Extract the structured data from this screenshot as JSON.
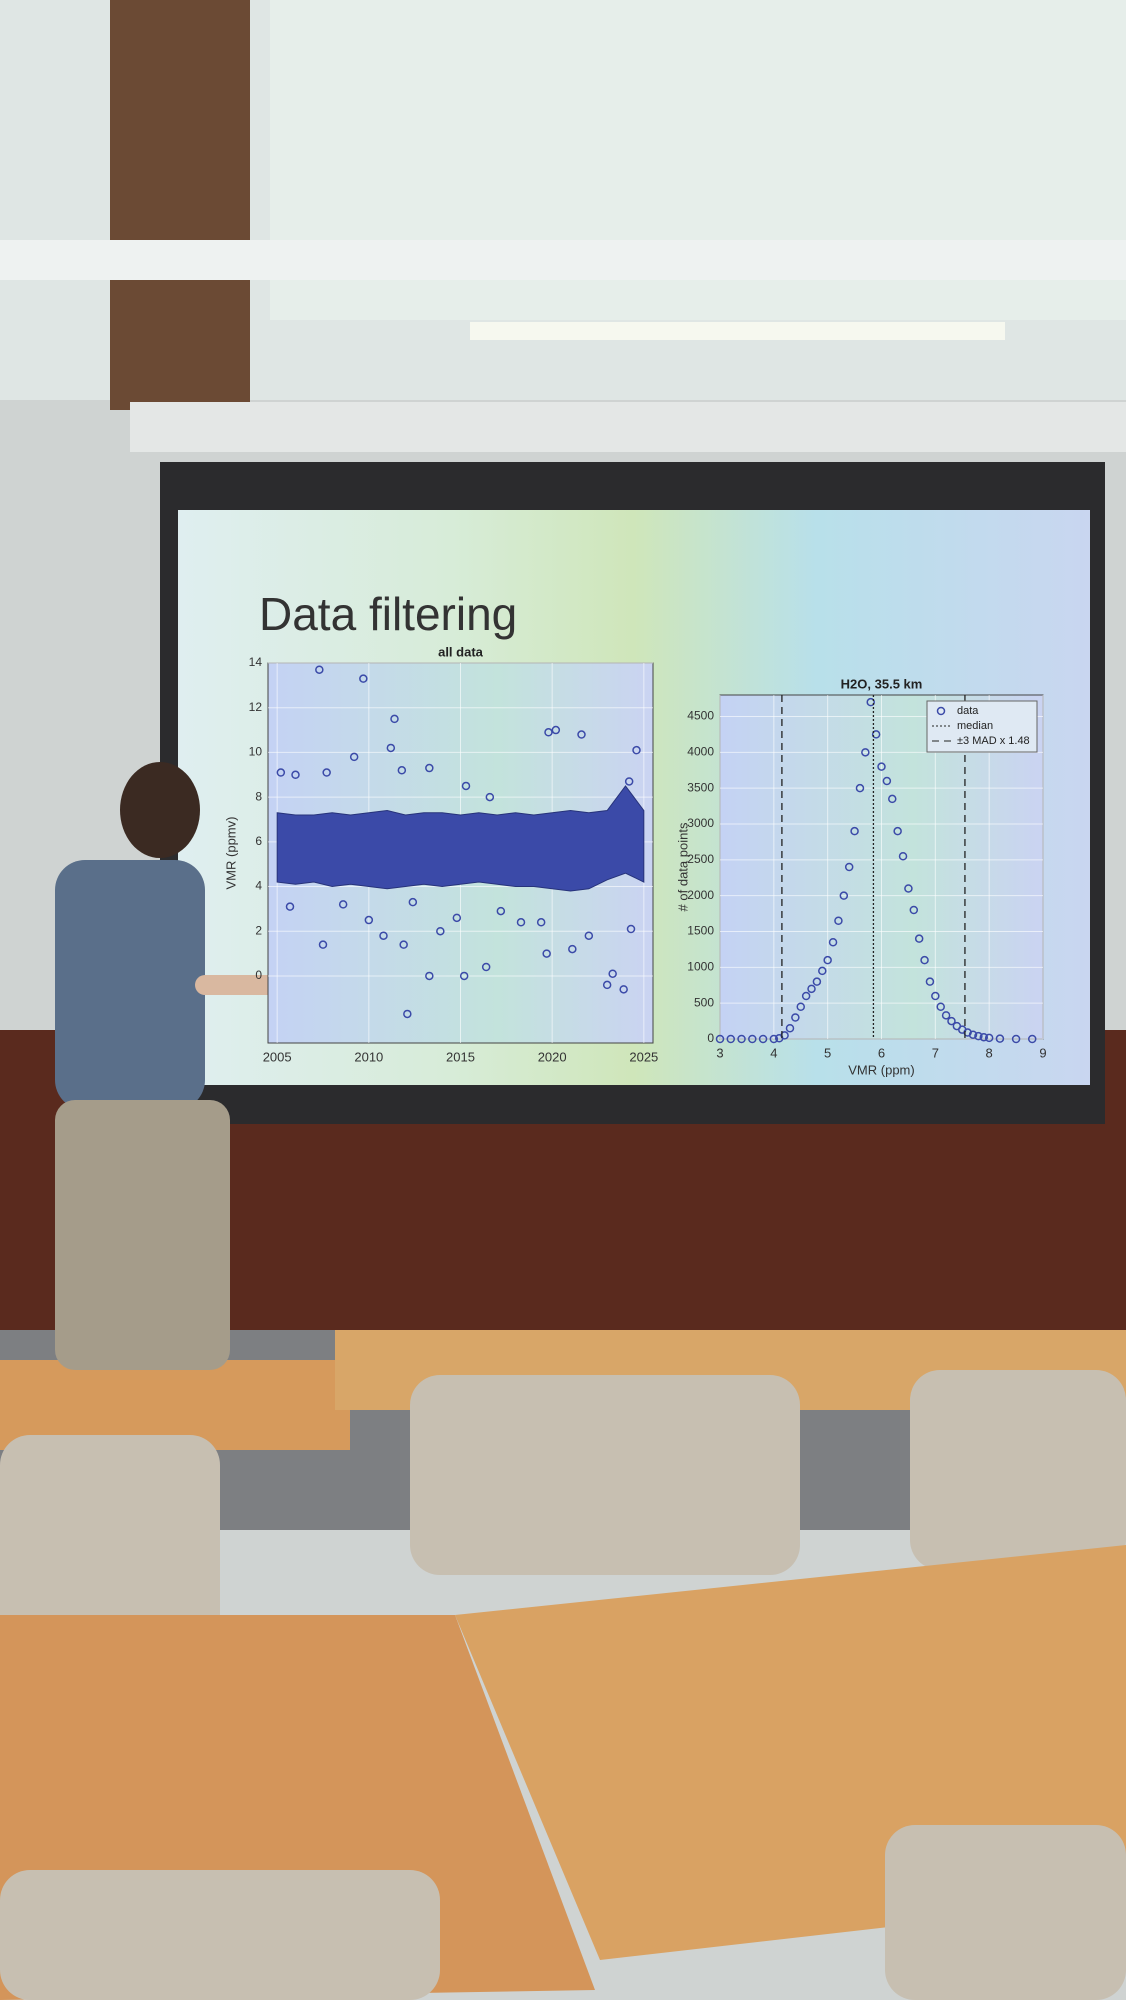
{
  "slide": {
    "title": "Data filtering"
  },
  "chart_data": [
    {
      "type": "scatter",
      "title": "all data",
      "ylabel": "VMR (ppmv)",
      "color": "#3b4aa8",
      "xlim": [
        2004.5,
        2025.5
      ],
      "xticks": [
        2005,
        2010,
        2015,
        2020,
        2025
      ],
      "ylim": [
        -3,
        14
      ],
      "yticks": [
        0,
        2,
        4,
        6,
        8,
        10,
        12,
        14
      ],
      "grid": true,
      "points": {
        "x": [
          2007.3,
          2009.7,
          2005.2,
          2006,
          2007.7,
          2009.2,
          2011.2,
          2011.4,
          2011.8,
          2013.3,
          2015.3,
          2016.6,
          2019.8,
          2020.2,
          2021.6,
          2024.6,
          2024.2,
          2011.9,
          2012.1,
          2013.3,
          2015.2,
          2016.4,
          2019.7,
          2023.0,
          2023.9,
          2023.3,
          2007.5,
          2010.0,
          2010.8,
          2013.9,
          2017.2,
          2018.3,
          2021.1,
          2022.0,
          2024.3,
          2005.7,
          2008.6,
          2012.4,
          2014.8,
          2019.4
        ],
        "y": [
          13.7,
          13.3,
          9.1,
          9.0,
          9.1,
          9.8,
          10.2,
          11.5,
          9.2,
          9.3,
          8.5,
          8.0,
          10.9,
          11.0,
          10.8,
          10.1,
          8.7,
          1.4,
          -1.7,
          0.0,
          0.0,
          0.4,
          1.0,
          -0.4,
          -0.6,
          0.1,
          1.4,
          2.5,
          1.8,
          2.0,
          2.9,
          2.4,
          1.2,
          1.8,
          2.1,
          3.1,
          3.2,
          3.3,
          2.6,
          2.4
        ]
      },
      "band": {
        "x": [
          2005,
          2006,
          2007,
          2008,
          2009,
          2010,
          2011,
          2012,
          2013,
          2014,
          2015,
          2016,
          2017,
          2018,
          2019,
          2020,
          2021,
          2022,
          2023,
          2024,
          2025
        ],
        "low": [
          4.2,
          4.1,
          4.2,
          4.0,
          4.1,
          4.0,
          3.9,
          4.0,
          4.1,
          4.0,
          4.1,
          4.2,
          4.1,
          4.0,
          4.0,
          3.9,
          3.8,
          3.9,
          4.3,
          4.6,
          4.2
        ],
        "high": [
          7.3,
          7.2,
          7.2,
          7.3,
          7.2,
          7.3,
          7.4,
          7.2,
          7.3,
          7.3,
          7.2,
          7.3,
          7.2,
          7.3,
          7.2,
          7.3,
          7.4,
          7.3,
          7.4,
          8.5,
          7.4
        ]
      }
    },
    {
      "type": "scatter",
      "title": "H2O, 35.5 km",
      "xlabel": "VMR (ppm)",
      "ylabel": "# of data points",
      "color": "#3b4aa8",
      "xlim": [
        3,
        9
      ],
      "xticks": [
        3,
        4,
        5,
        6,
        7,
        8,
        9
      ],
      "ylim": [
        0,
        4800
      ],
      "yticks": [
        0,
        500,
        1000,
        1500,
        2000,
        2500,
        3000,
        3500,
        4000,
        4500
      ],
      "grid": true,
      "legend": "upper right",
      "series": [
        {
          "name": "data",
          "x": [
            3.0,
            3.2,
            3.4,
            3.6,
            3.8,
            4.0,
            4.1,
            4.2,
            4.3,
            4.4,
            4.5,
            4.6,
            4.7,
            4.8,
            4.9,
            5.0,
            5.1,
            5.2,
            5.3,
            5.4,
            5.5,
            5.6,
            5.7,
            5.8,
            5.9,
            6.0,
            6.1,
            6.2,
            6.3,
            6.4,
            6.5,
            6.6,
            6.7,
            6.8,
            6.9,
            7.0,
            7.1,
            7.2,
            7.3,
            7.4,
            7.5,
            7.6,
            7.7,
            7.8,
            7.9,
            8.0,
            8.2,
            8.5,
            8.8
          ],
          "values": [
            0,
            0,
            0,
            0,
            0,
            0,
            10,
            50,
            150,
            300,
            450,
            600,
            700,
            800,
            950,
            1100,
            1350,
            1650,
            2000,
            2400,
            2900,
            3500,
            4000,
            4700,
            4250,
            3800,
            3600,
            3350,
            2900,
            2550,
            2100,
            1800,
            1400,
            1100,
            800,
            600,
            450,
            330,
            250,
            180,
            130,
            90,
            60,
            40,
            25,
            15,
            5,
            0,
            0
          ]
        }
      ],
      "vlines": [
        {
          "name": "median",
          "style": "dotted",
          "values": [
            5.85
          ]
        },
        {
          "name": "±3 MAD x 1.48",
          "style": "dashed",
          "values": [
            4.15,
            7.55
          ]
        }
      ]
    }
  ]
}
